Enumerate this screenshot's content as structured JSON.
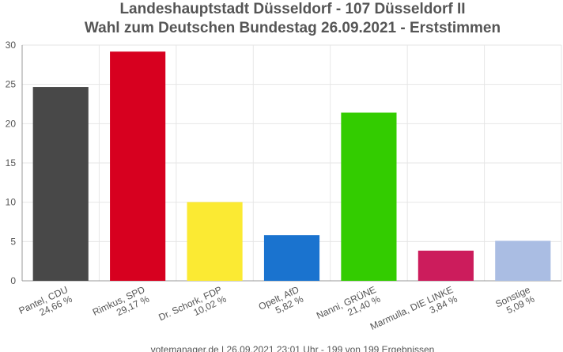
{
  "chart_data": {
    "type": "bar",
    "title": "Landeshauptstadt Düsseldorf - 107 Düsseldorf II",
    "subtitle": "Wahl zum Deutschen Bundestag 26.09.2021  - Erststimmen",
    "categories": [
      "Pantel, CDU",
      "Rimkus, SPD",
      "Dr. Schork, FDP",
      "Opelt, AfD",
      "Nanni, GRÜNE",
      "Marmulla, DIE LINKE",
      "Sonstige"
    ],
    "values": [
      24.66,
      29.17,
      10.02,
      5.82,
      21.4,
      3.84,
      5.09
    ],
    "value_labels": [
      "24,66 %",
      "29,17 %",
      "10,02 %",
      "5,82 %",
      "21,40 %",
      "3,84 %",
      "5,09 %"
    ],
    "colors": [
      "#484848",
      "#d7001f",
      "#fbea33",
      "#1a73cf",
      "#33cc00",
      "#cc1c5c",
      "#aabde3"
    ],
    "ylim": [
      0,
      30
    ],
    "yticks": [
      0,
      5,
      10,
      15,
      20,
      25,
      30
    ],
    "grid": true,
    "footer": "votemanager.de | 26.09.2021 23:01 Uhr - 199 von 199 Ergebnissen"
  }
}
